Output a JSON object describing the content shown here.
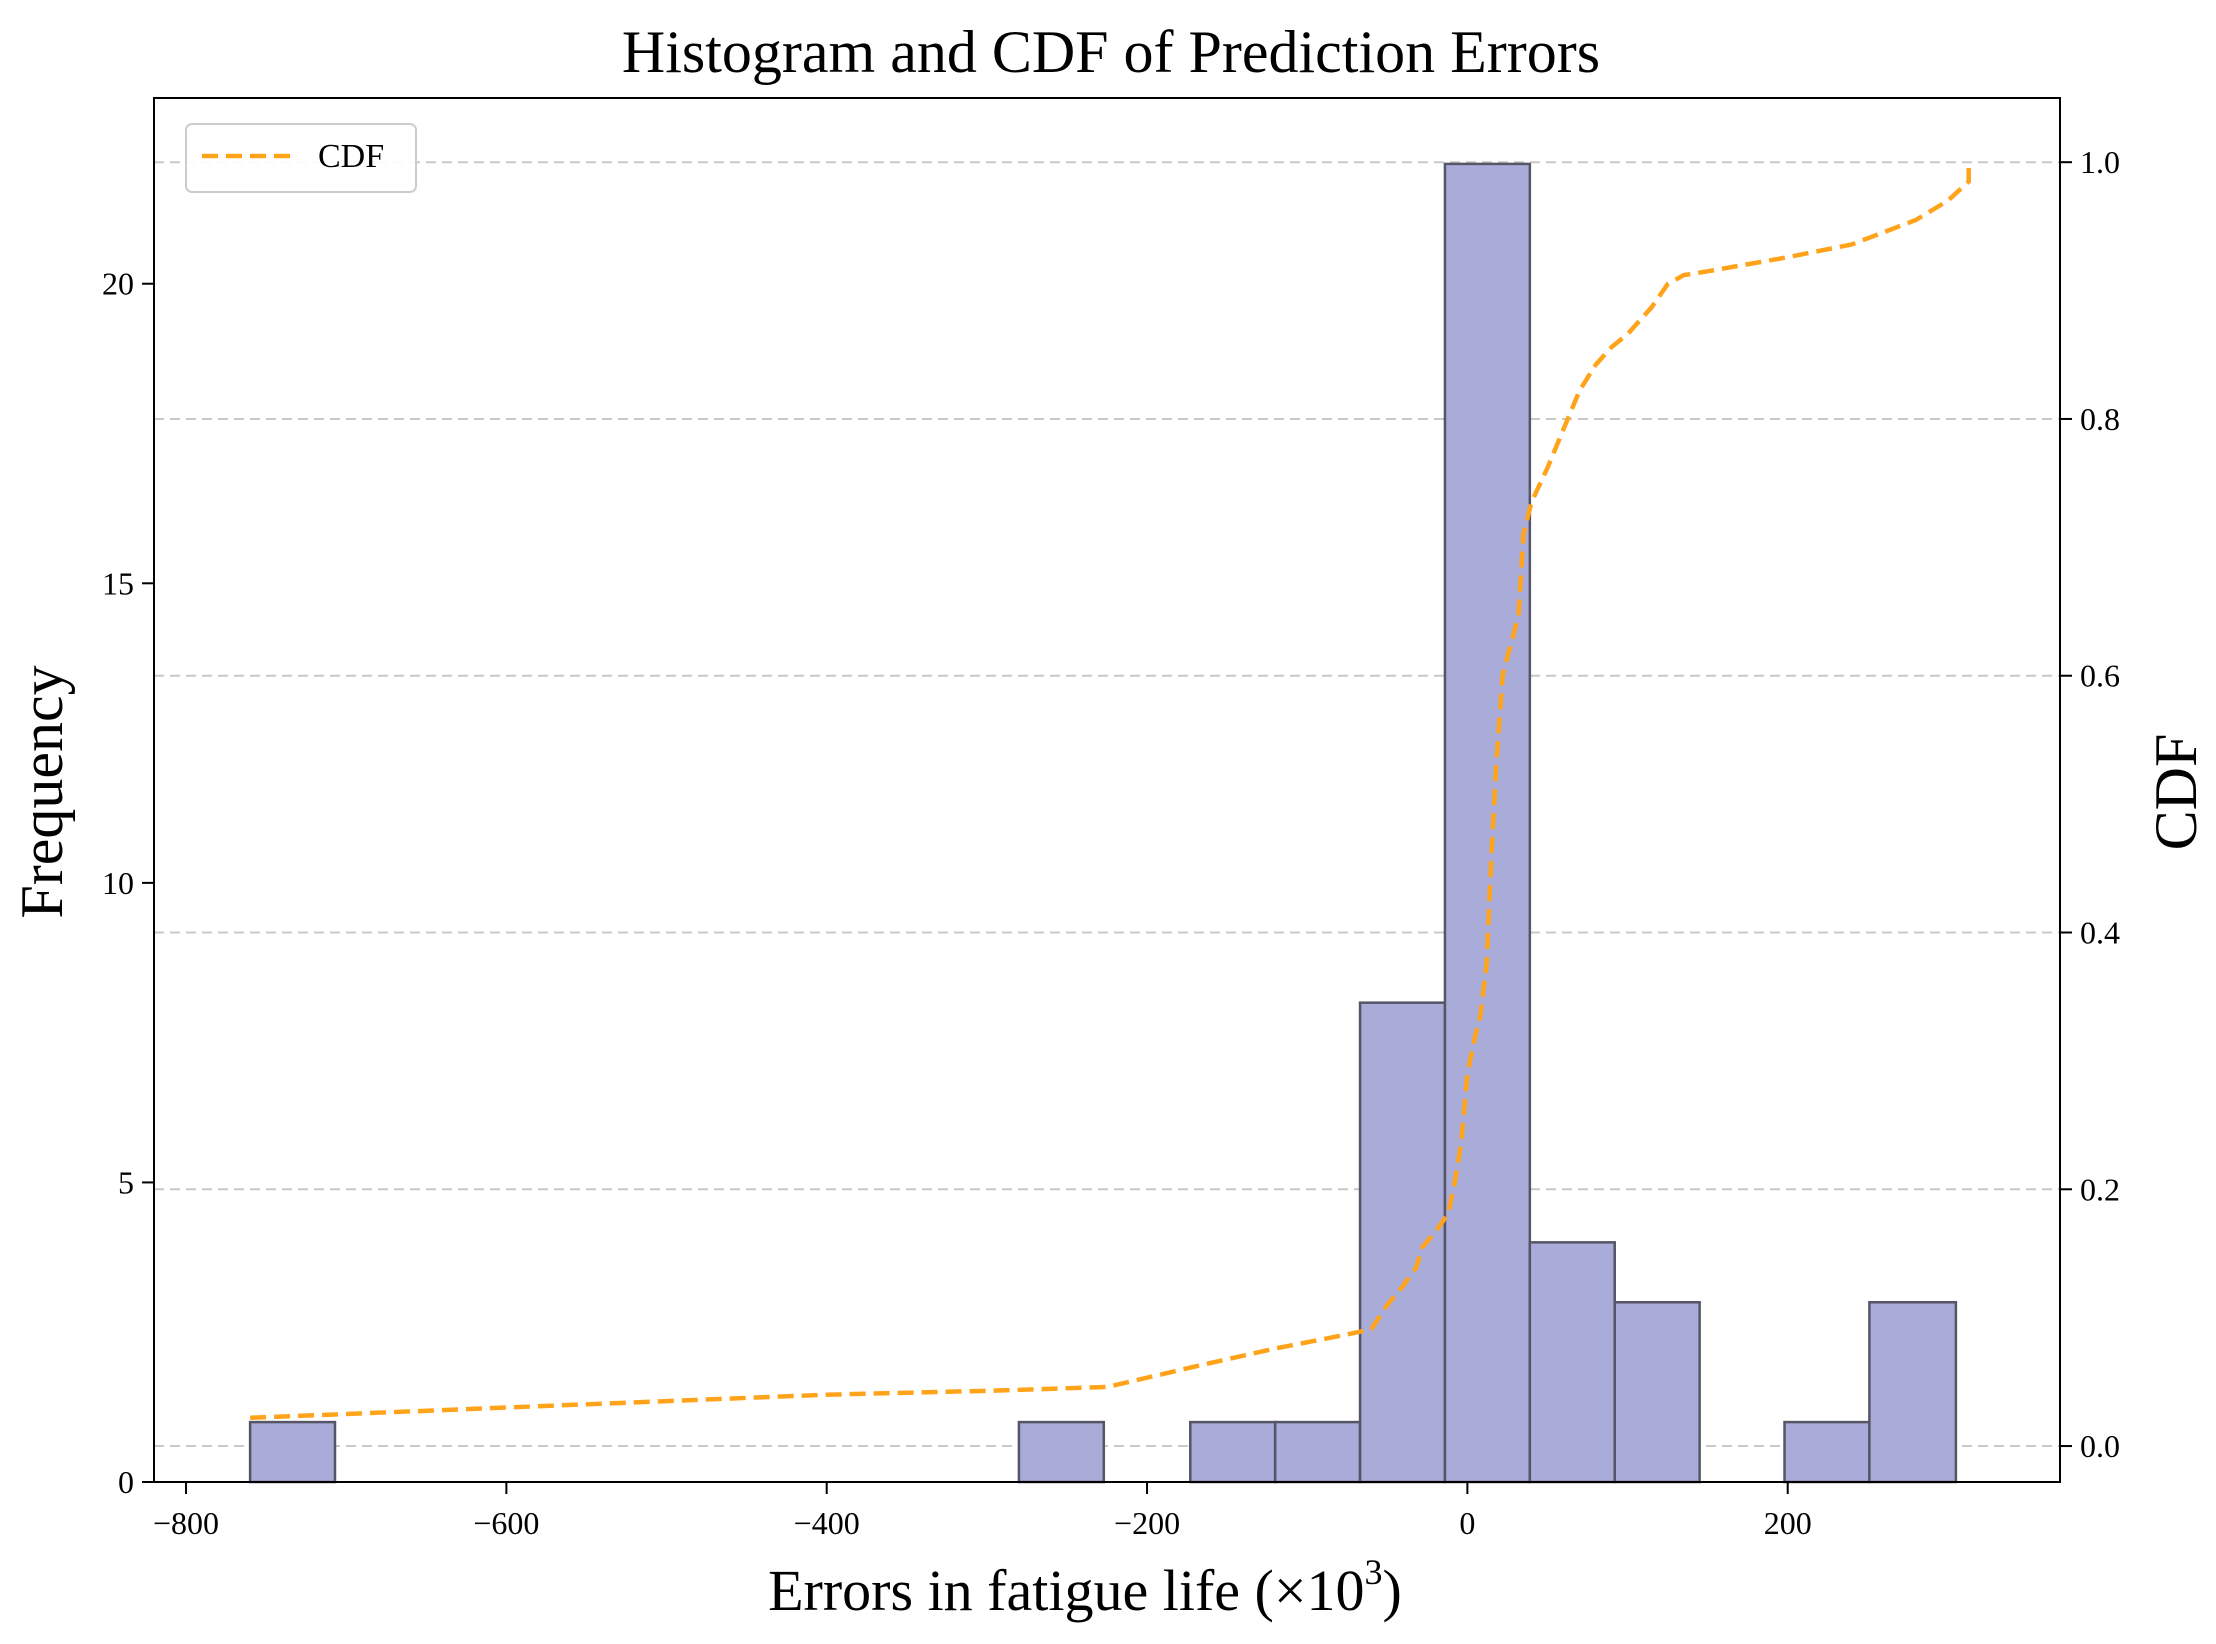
{
  "chart_data": {
    "type": "bar",
    "title": "Histogram and CDF of Prediction Errors",
    "xlabel_main": "Errors in fatigue life (×10",
    "xlabel_sup": "3",
    "xlabel_close": ")",
    "ylabel": "Frequency",
    "y2label": "CDF",
    "xlim": [
      -820,
      370
    ],
    "ylim": [
      0,
      23.1
    ],
    "y2lim": [
      -0.028,
      1.05
    ],
    "x_ticks": [
      -800,
      -600,
      -400,
      -200,
      0,
      200
    ],
    "y_ticks": [
      0,
      5,
      10,
      15,
      20
    ],
    "y2_ticks": [
      0.0,
      0.2,
      0.4,
      0.6,
      0.8,
      1.0
    ],
    "y2_tick_labels": [
      "0.0",
      "0.2",
      "0.4",
      "0.6",
      "0.8",
      "1.0"
    ],
    "grid": "horizontal dashed (CDF axis)",
    "legend": {
      "position": "top-left",
      "entries": [
        "CDF"
      ]
    },
    "colors": {
      "bars": "#a9abd9",
      "bar_edge": "#555566",
      "cdf": "#ffa31a"
    },
    "bins": [
      {
        "x0": -760,
        "x1": -707,
        "count": 1
      },
      {
        "x0": -280,
        "x1": -227,
        "count": 1
      },
      {
        "x0": -173,
        "x1": -120,
        "count": 1
      },
      {
        "x0": -120,
        "x1": -67,
        "count": 1
      },
      {
        "x0": -67,
        "x1": -14,
        "count": 8
      },
      {
        "x0": -14,
        "x1": 39,
        "count": 22
      },
      {
        "x0": 39,
        "x1": 92,
        "count": 4
      },
      {
        "x0": 92,
        "x1": 145,
        "count": 3
      },
      {
        "x0": 198,
        "x1": 251,
        "count": 1
      },
      {
        "x0": 251,
        "x1": 305,
        "count": 3
      }
    ],
    "series": [
      {
        "name": "CDF",
        "x": [
          -760,
          -700,
          -600,
          -500,
          -400,
          -300,
          -225,
          -170,
          -120,
          -75,
          -60,
          -50,
          -40,
          -32,
          -28,
          -20,
          -12,
          -8,
          -4,
          0,
          5,
          8,
          12,
          15,
          18,
          22,
          25,
          28,
          32,
          35,
          40,
          50,
          60,
          70,
          80,
          90,
          100,
          115,
          125,
          135,
          150,
          200,
          240,
          280,
          300,
          313,
          313
        ],
        "y": [
          0.022,
          0.025,
          0.03,
          0.035,
          0.04,
          0.043,
          0.046,
          0.062,
          0.076,
          0.087,
          0.091,
          0.11,
          0.125,
          0.139,
          0.155,
          0.167,
          0.181,
          0.205,
          0.235,
          0.29,
          0.32,
          0.335,
          0.375,
          0.46,
          0.53,
          0.6,
          0.615,
          0.628,
          0.648,
          0.71,
          0.735,
          0.762,
          0.792,
          0.822,
          0.842,
          0.856,
          0.866,
          0.887,
          0.905,
          0.912,
          0.915,
          0.926,
          0.936,
          0.955,
          0.97,
          0.985,
          1.0
        ]
      }
    ]
  }
}
